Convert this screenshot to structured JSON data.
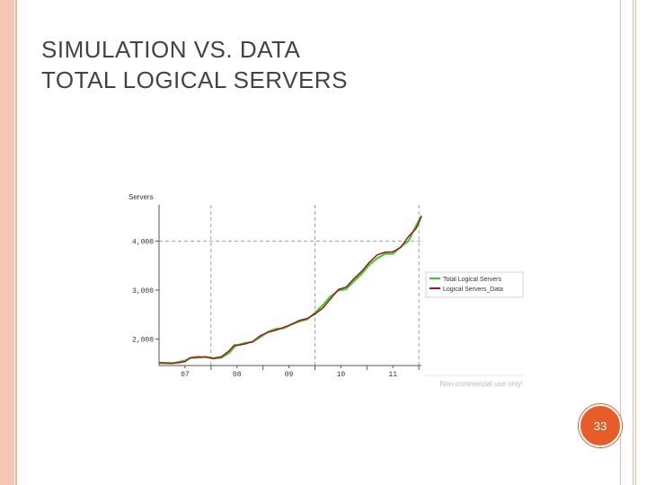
{
  "slide": {
    "title_line1": "SIMULATION VS. DATA",
    "title_line2": "TOTAL LOGICAL SERVERS",
    "page_number": "33",
    "accent_color": "#e65d2a"
  },
  "chart_data": {
    "type": "line",
    "ylabel": "Servers",
    "yticks": [
      "2,000",
      "3,000",
      "4,000"
    ],
    "ytick_values": [
      2000,
      3000,
      4000
    ],
    "xticks": [
      "07",
      "08",
      "09",
      "10",
      "11"
    ],
    "xtick_values": [
      7,
      8,
      9,
      10,
      11
    ],
    "xlim": [
      6.5,
      11.55
    ],
    "ylim": [
      1460,
      4740
    ],
    "grid_dashed_x": [
      7.5,
      9.5,
      11.5
    ],
    "grid_dashed_y": [
      4000
    ],
    "legend_position": "right",
    "watermark": "Non-commercial use only!",
    "series": [
      {
        "name": "Total Logical Servers",
        "color": "#33cc33",
        "x": [
          6.5,
          6.75,
          6.9,
          7.0,
          7.1,
          7.25,
          7.4,
          7.55,
          7.7,
          7.85,
          7.95,
          8.05,
          8.15,
          8.3,
          8.45,
          8.6,
          8.75,
          8.9,
          9.05,
          9.2,
          9.35,
          9.5,
          9.65,
          9.8,
          9.95,
          10.1,
          10.25,
          10.4,
          10.55,
          10.7,
          10.85,
          11.0,
          11.15,
          11.3,
          11.45,
          11.55
        ],
        "values": [
          1510,
          1500,
          1540,
          1560,
          1610,
          1620,
          1640,
          1600,
          1620,
          1720,
          1840,
          1890,
          1920,
          1940,
          2040,
          2150,
          2210,
          2220,
          2300,
          2360,
          2400,
          2540,
          2690,
          2870,
          2990,
          3020,
          3180,
          3330,
          3520,
          3650,
          3740,
          3740,
          3880,
          4000,
          4320,
          4520
        ]
      },
      {
        "name": "Logical Servers_Data",
        "color": "#aa1111",
        "x": [
          6.5,
          6.75,
          6.9,
          7.0,
          7.1,
          7.25,
          7.4,
          7.55,
          7.7,
          7.85,
          7.95,
          8.05,
          8.15,
          8.3,
          8.45,
          8.6,
          8.75,
          8.9,
          9.05,
          9.2,
          9.35,
          9.5,
          9.65,
          9.8,
          9.95,
          10.1,
          10.25,
          10.4,
          10.55,
          10.7,
          10.85,
          11.0,
          11.15,
          11.3,
          11.45,
          11.55
        ],
        "values": [
          1520,
          1510,
          1520,
          1540,
          1620,
          1640,
          1630,
          1610,
          1640,
          1760,
          1880,
          1880,
          1900,
          1950,
          2070,
          2140,
          2180,
          2240,
          2300,
          2380,
          2420,
          2510,
          2630,
          2820,
          3010,
          3060,
          3230,
          3380,
          3570,
          3720,
          3770,
          3780,
          3870,
          4090,
          4260,
          4500
        ]
      }
    ]
  }
}
